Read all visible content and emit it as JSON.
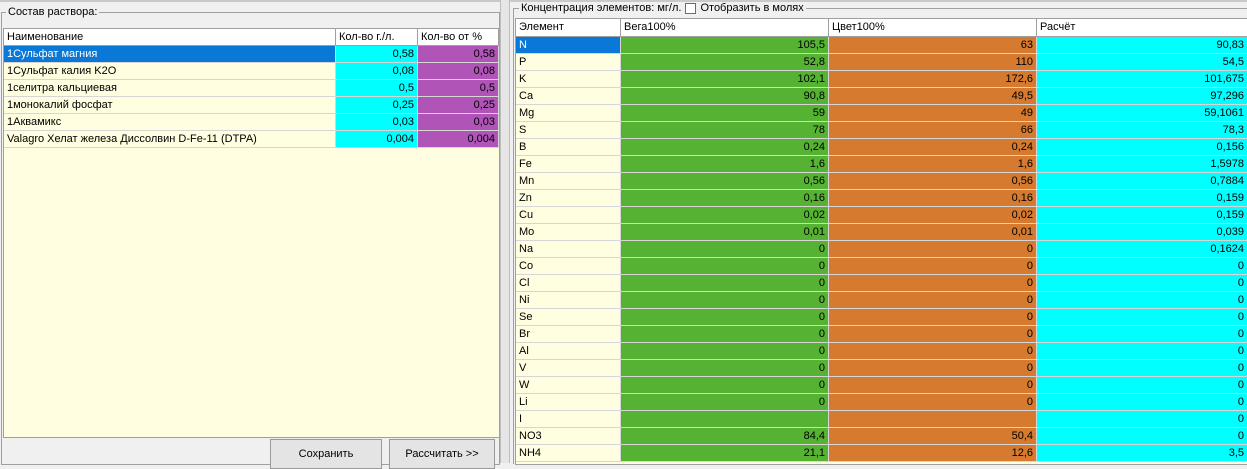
{
  "left_panel": {
    "legend": "Состав раствора:",
    "columns": [
      "Наименование",
      "Кол-во г./л.",
      "Кол-во от %"
    ],
    "rows": [
      {
        "name": "1Сульфат магния",
        "g": "0,58",
        "pct": "0,58",
        "selected": true
      },
      {
        "name": "1Сульфат калия K2O",
        "g": "0,08",
        "pct": "0,08"
      },
      {
        "name": "1селитра кальциевая",
        "g": "0,5",
        "pct": "0,5"
      },
      {
        "name": "1монокалий фосфат",
        "g": "0,25",
        "pct": "0,25"
      },
      {
        "name": "1Аквамикс",
        "g": "0,03",
        "pct": "0,03"
      },
      {
        "name": "Valagro Хелат железа Диссолвин D-Fe-11 (DTPA)",
        "g": "0,004",
        "pct": "0,004"
      }
    ],
    "buttons": {
      "save": "Сохранить",
      "calculate": "Рассчитать >>"
    }
  },
  "right_panel": {
    "legend": "Концентрация элементов: мг/л.",
    "checkbox_label": "Отобразить в молях",
    "checkbox_checked": false,
    "columns": [
      "Элемент",
      "Вега100%",
      "Цвет100%",
      "Расчёт"
    ],
    "rows": [
      {
        "el": "N",
        "vega": "105,5",
        "cvet": "63",
        "calc": "90,83",
        "selected": true
      },
      {
        "el": "P",
        "vega": "52,8",
        "cvet": "110",
        "calc": "54,5"
      },
      {
        "el": "K",
        "vega": "102,1",
        "cvet": "172,6",
        "calc": "101,675"
      },
      {
        "el": "Ca",
        "vega": "90,8",
        "cvet": "49,5",
        "calc": "97,296"
      },
      {
        "el": "Mg",
        "vega": "59",
        "cvet": "49",
        "calc": "59,1061"
      },
      {
        "el": "S",
        "vega": "78",
        "cvet": "66",
        "calc": "78,3"
      },
      {
        "el": "B",
        "vega": "0,24",
        "cvet": "0,24",
        "calc": "0,156"
      },
      {
        "el": "Fe",
        "vega": "1,6",
        "cvet": "1,6",
        "calc": "1,5978"
      },
      {
        "el": "Mn",
        "vega": "0,56",
        "cvet": "0,56",
        "calc": "0,7884"
      },
      {
        "el": "Zn",
        "vega": "0,16",
        "cvet": "0,16",
        "calc": "0,159"
      },
      {
        "el": "Cu",
        "vega": "0,02",
        "cvet": "0,02",
        "calc": "0,159"
      },
      {
        "el": "Mo",
        "vega": "0,01",
        "cvet": "0,01",
        "calc": "0,039"
      },
      {
        "el": "Na",
        "vega": "0",
        "cvet": "0",
        "calc": "0,1624"
      },
      {
        "el": "Co",
        "vega": "0",
        "cvet": "0",
        "calc": "0"
      },
      {
        "el": "Cl",
        "vega": "0",
        "cvet": "0",
        "calc": "0"
      },
      {
        "el": "Ni",
        "vega": "0",
        "cvet": "0",
        "calc": "0"
      },
      {
        "el": "Se",
        "vega": "0",
        "cvet": "0",
        "calc": "0"
      },
      {
        "el": "Br",
        "vega": "0",
        "cvet": "0",
        "calc": "0"
      },
      {
        "el": "Al",
        "vega": "0",
        "cvet": "0",
        "calc": "0"
      },
      {
        "el": "V",
        "vega": "0",
        "cvet": "0",
        "calc": "0"
      },
      {
        "el": "W",
        "vega": "0",
        "cvet": "0",
        "calc": "0"
      },
      {
        "el": "Li",
        "vega": "0",
        "cvet": "0",
        "calc": "0"
      },
      {
        "el": "I",
        "vega": "",
        "cvet": "",
        "calc": "0"
      },
      {
        "el": "NO3",
        "vega": "84,4",
        "cvet": "50,4",
        "calc": "0"
      },
      {
        "el": "NH4",
        "vega": "21,1",
        "cvet": "12,6",
        "calc": "3,5"
      }
    ]
  },
  "colors": {
    "cyan": "#00ffff",
    "magenta": "#b054b8",
    "green": "#55b232",
    "orange": "#d57a2f",
    "selection": "#0a78d7",
    "grid_bg": "#fffee0"
  }
}
